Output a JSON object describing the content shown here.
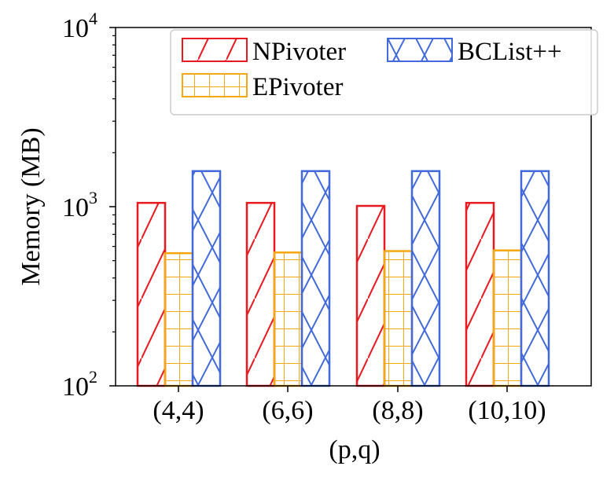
{
  "chart_data": {
    "type": "bar",
    "title": "",
    "xlabel": "(p,q)",
    "ylabel": "Memory (MB)",
    "yscale": "log",
    "ylim": [
      100,
      10000
    ],
    "yticks": [
      {
        "value": 100,
        "base": "10",
        "exp": "2"
      },
      {
        "value": 1000,
        "base": "10",
        "exp": "3"
      },
      {
        "value": 10000,
        "base": "10",
        "exp": "4"
      }
    ],
    "categories": [
      "(4,4)",
      "(6,6)",
      "(8,8)",
      "(10,10)"
    ],
    "series": [
      {
        "name": "NPivoter",
        "color": "#e8191f",
        "hatch": "diagonal",
        "values": [
          1050,
          1050,
          1010,
          1050
        ]
      },
      {
        "name": "EPivoter",
        "color": "#f5a70f",
        "hatch": "grid",
        "values": [
          550,
          555,
          565,
          570
        ]
      },
      {
        "name": "BCList++",
        "color": "#4169d9",
        "hatch": "cross",
        "values": [
          1580,
          1580,
          1580,
          1580
        ]
      }
    ],
    "legend": {
      "position": "top-right",
      "columns": 2
    }
  }
}
